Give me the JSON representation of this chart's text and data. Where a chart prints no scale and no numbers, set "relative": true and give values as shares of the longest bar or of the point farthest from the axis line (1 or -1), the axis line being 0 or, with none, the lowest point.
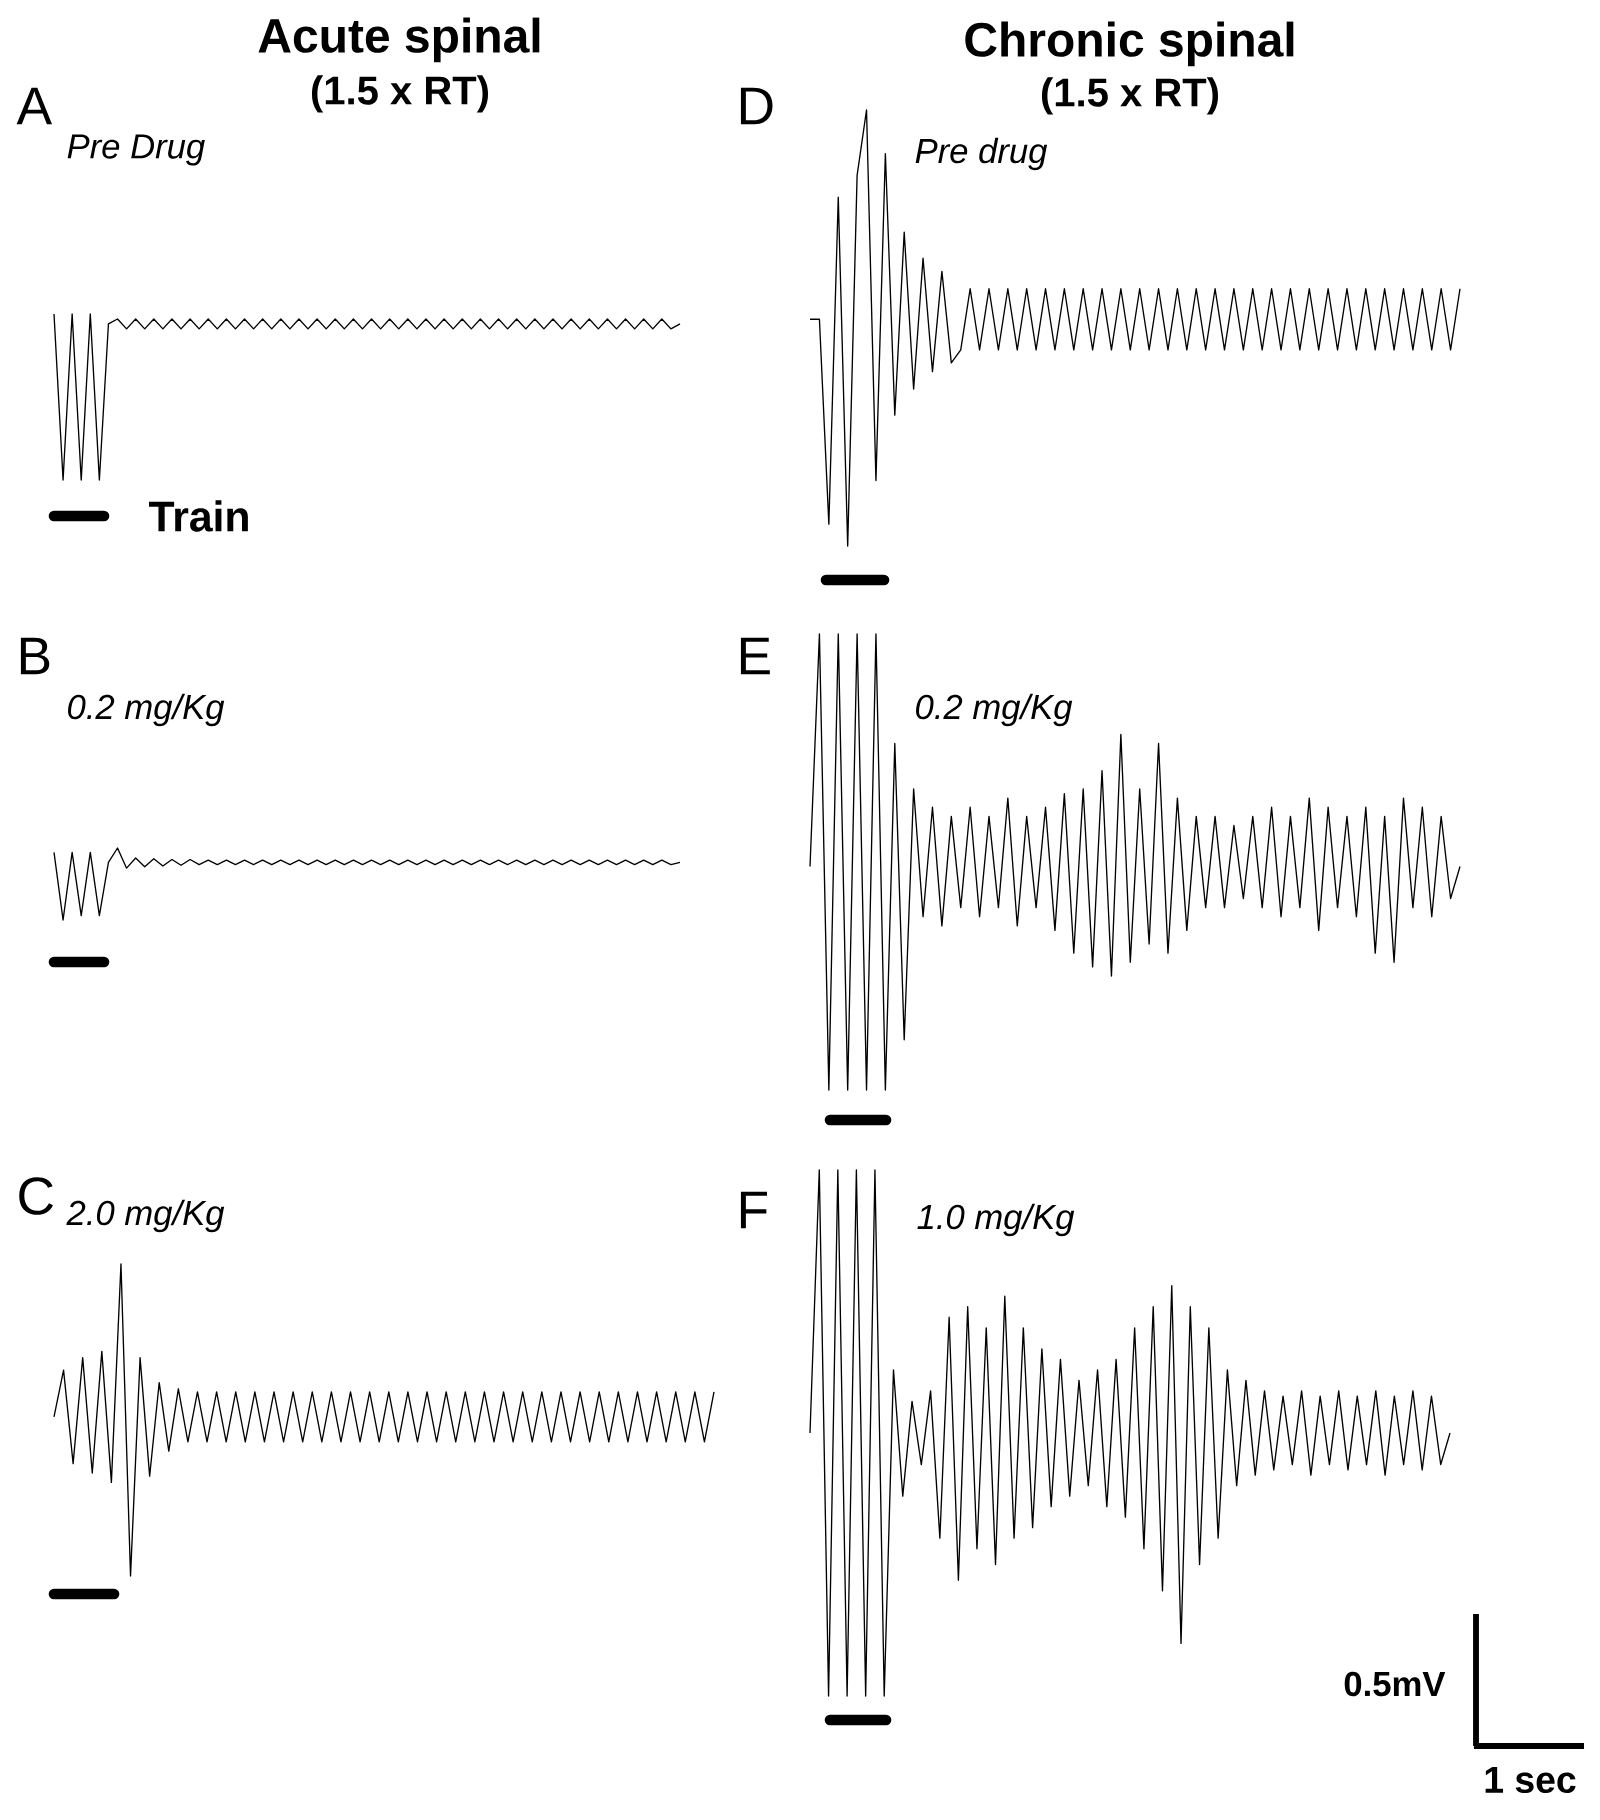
{
  "chart_data": [
    {
      "type": "line",
      "relative": true,
      "title": "A",
      "subtitle": "Pre Drug",
      "color": "#000000",
      "annotations": [
        "Acute spinal",
        "(1.5 x RT)",
        "Train"
      ],
      "categories": [
        null,
        null,
        null,
        null,
        null,
        null,
        null,
        null,
        null,
        null,
        null,
        null,
        null,
        null,
        null,
        null,
        null,
        null,
        null,
        null,
        null,
        null,
        null,
        null,
        null,
        null,
        null,
        null,
        null,
        null,
        null,
        null,
        null,
        null,
        null,
        null,
        null,
        null,
        null,
        null,
        null,
        null,
        null,
        null,
        null,
        null,
        null,
        null,
        null,
        null,
        null,
        null,
        null,
        null,
        null,
        null,
        null,
        null,
        null,
        null,
        null,
        null,
        null,
        null,
        null,
        null,
        null,
        null,
        null,
        null
      ],
      "values": [
        1,
        0,
        1,
        0,
        1,
        0,
        0.94,
        0.97,
        0.91,
        0.97,
        0.91,
        0.97,
        0.91,
        0.97,
        0.91,
        0.97,
        0.91,
        0.97,
        0.91,
        0.97,
        0.91,
        0.97,
        0.91,
        0.97,
        0.91,
        0.97,
        0.91,
        0.97,
        0.91,
        0.97,
        0.91,
        0.97,
        0.91,
        0.97,
        0.91,
        0.97,
        0.91,
        0.97,
        0.91,
        0.97,
        0.91,
        0.97,
        0.91,
        0.97,
        0.91,
        0.97,
        0.91,
        0.97,
        0.91,
        0.97,
        0.91,
        0.97,
        0.91,
        0.97,
        0.91,
        0.97,
        0.91,
        0.97,
        0.91,
        0.97,
        0.91,
        0.97,
        0.91,
        0.97,
        0.91,
        0.97,
        0.91,
        0.97,
        0.91,
        0.94
      ]
    },
    {
      "type": "line",
      "relative": true,
      "title": "B",
      "subtitle": "0.2 mg/Kg",
      "color": "#000000",
      "categories": [
        null,
        null,
        null,
        null,
        null,
        null,
        null,
        null,
        null,
        null,
        null,
        null,
        null,
        null,
        null,
        null,
        null,
        null,
        null,
        null,
        null,
        null,
        null,
        null,
        null,
        null,
        null,
        null,
        null,
        null,
        null,
        null,
        null,
        null,
        null,
        null,
        null,
        null,
        null,
        null,
        null,
        null,
        null,
        null,
        null,
        null,
        null,
        null,
        null,
        null,
        null,
        null,
        null,
        null,
        null,
        null,
        null,
        null,
        null,
        null,
        null,
        null,
        null,
        null,
        null,
        null,
        null,
        null,
        null,
        null
      ],
      "values": [
        0.94,
        0,
        0.94,
        0.06,
        0.94,
        0.06,
        0.8,
        1,
        0.72,
        0.86,
        0.74,
        0.85,
        0.75,
        0.84,
        0.76,
        0.84,
        0.77,
        0.83,
        0.77,
        0.83,
        0.77,
        0.83,
        0.77,
        0.83,
        0.77,
        0.83,
        0.77,
        0.83,
        0.77,
        0.83,
        0.77,
        0.83,
        0.77,
        0.83,
        0.77,
        0.83,
        0.77,
        0.83,
        0.77,
        0.83,
        0.77,
        0.83,
        0.77,
        0.83,
        0.77,
        0.83,
        0.77,
        0.83,
        0.77,
        0.83,
        0.77,
        0.83,
        0.77,
        0.83,
        0.77,
        0.83,
        0.77,
        0.83,
        0.77,
        0.83,
        0.77,
        0.83,
        0.77,
        0.83,
        0.77,
        0.83,
        0.77,
        0.83,
        0.77,
        0.8
      ]
    },
    {
      "type": "line",
      "relative": true,
      "title": "C",
      "subtitle": "2.0 mg/Kg",
      "color": "#000000",
      "categories": [
        null,
        null,
        null,
        null,
        null,
        null,
        null,
        null,
        null,
        null,
        null,
        null,
        null,
        null,
        null,
        null,
        null,
        null,
        null,
        null,
        null,
        null,
        null,
        null,
        null,
        null,
        null,
        null,
        null,
        null,
        null,
        null,
        null,
        null,
        null,
        null,
        null,
        null,
        null,
        null,
        null,
        null,
        null,
        null,
        null,
        null,
        null,
        null,
        null,
        null,
        null,
        null,
        null,
        null,
        null,
        null,
        null,
        null,
        null,
        null,
        null,
        null,
        null,
        null,
        null,
        null,
        null,
        null,
        null,
        null
      ],
      "values": [
        0.51,
        0.66,
        0.36,
        0.7,
        0.33,
        0.72,
        0.3,
        1,
        0,
        0.7,
        0.32,
        0.62,
        0.4,
        0.6,
        0.43,
        0.59,
        0.43,
        0.59,
        0.43,
        0.59,
        0.43,
        0.59,
        0.43,
        0.59,
        0.43,
        0.59,
        0.43,
        0.59,
        0.43,
        0.59,
        0.43,
        0.59,
        0.43,
        0.59,
        0.43,
        0.59,
        0.43,
        0.59,
        0.43,
        0.59,
        0.43,
        0.59,
        0.43,
        0.59,
        0.43,
        0.59,
        0.43,
        0.59,
        0.43,
        0.59,
        0.43,
        0.59,
        0.43,
        0.59,
        0.43,
        0.59,
        0.43,
        0.59,
        0.43,
        0.59,
        0.43,
        0.59,
        0.43,
        0.59,
        0.43,
        0.59,
        0.43,
        0.59,
        0.43,
        0.59
      ]
    },
    {
      "type": "line",
      "relative": true,
      "title": "D",
      "subtitle": "Pre drug",
      "color": "#000000",
      "annotations": [
        "Chronic spinal",
        "(1.5 x RT)"
      ],
      "categories": [
        null,
        null,
        null,
        null,
        null,
        null,
        null,
        null,
        null,
        null,
        null,
        null,
        null,
        null,
        null,
        null,
        null,
        null,
        null,
        null,
        null,
        null,
        null,
        null,
        null,
        null,
        null,
        null,
        null,
        null,
        null,
        null,
        null,
        null,
        null,
        null,
        null,
        null,
        null,
        null,
        null,
        null,
        null,
        null,
        null,
        null,
        null,
        null,
        null,
        null,
        null,
        null,
        null,
        null,
        null,
        null,
        null,
        null,
        null,
        null,
        null,
        null,
        null,
        null,
        null,
        null,
        null,
        null,
        null,
        null
      ],
      "values": [
        0.52,
        0.52,
        0.05,
        0.8,
        0,
        0.85,
        1,
        0.15,
        0.9,
        0.3,
        0.72,
        0.36,
        0.66,
        0.4,
        0.63,
        0.42,
        0.45,
        0.59,
        0.45,
        0.59,
        0.45,
        0.59,
        0.45,
        0.59,
        0.45,
        0.59,
        0.45,
        0.59,
        0.45,
        0.59,
        0.45,
        0.59,
        0.45,
        0.59,
        0.45,
        0.59,
        0.45,
        0.59,
        0.45,
        0.59,
        0.45,
        0.59,
        0.45,
        0.59,
        0.45,
        0.59,
        0.45,
        0.59,
        0.45,
        0.59,
        0.45,
        0.59,
        0.45,
        0.59,
        0.45,
        0.59,
        0.45,
        0.59,
        0.45,
        0.59,
        0.45,
        0.59,
        0.45,
        0.59,
        0.45,
        0.59,
        0.45,
        0.59,
        0.45,
        0.59
      ]
    },
    {
      "type": "line",
      "relative": true,
      "title": "E",
      "subtitle": "0.2 mg/Kg",
      "color": "#000000",
      "categories": [
        null,
        null,
        null,
        null,
        null,
        null,
        null,
        null,
        null,
        null,
        null,
        null,
        null,
        null,
        null,
        null,
        null,
        null,
        null,
        null,
        null,
        null,
        null,
        null,
        null,
        null,
        null,
        null,
        null,
        null,
        null,
        null,
        null,
        null,
        null,
        null,
        null,
        null,
        null,
        null,
        null,
        null,
        null,
        null,
        null,
        null,
        null,
        null,
        null,
        null,
        null,
        null,
        null,
        null,
        null,
        null,
        null,
        null,
        null,
        null,
        null,
        null,
        null,
        null,
        null,
        null,
        null,
        null,
        null,
        null
      ],
      "values": [
        0.49,
        1,
        0,
        1,
        0,
        1,
        0,
        1,
        0,
        0.76,
        0.11,
        0.66,
        0.38,
        0.62,
        0.36,
        0.6,
        0.4,
        0.62,
        0.38,
        0.6,
        0.4,
        0.64,
        0.36,
        0.6,
        0.4,
        0.62,
        0.35,
        0.65,
        0.3,
        0.66,
        0.27,
        0.7,
        0.25,
        0.78,
        0.28,
        0.66,
        0.32,
        0.76,
        0.3,
        0.64,
        0.35,
        0.6,
        0.4,
        0.6,
        0.4,
        0.58,
        0.42,
        0.6,
        0.4,
        0.62,
        0.38,
        0.6,
        0.4,
        0.64,
        0.35,
        0.62,
        0.4,
        0.6,
        0.38,
        0.62,
        0.3,
        0.6,
        0.28,
        0.64,
        0.4,
        0.62,
        0.38,
        0.6,
        0.42,
        0.49
      ]
    },
    {
      "type": "line",
      "relative": true,
      "title": "F",
      "subtitle": "1.0 mg/Kg",
      "color": "#000000",
      "annotations": [
        "0.5mV",
        "1 sec"
      ],
      "categories": [
        null,
        null,
        null,
        null,
        null,
        null,
        null,
        null,
        null,
        null,
        null,
        null,
        null,
        null,
        null,
        null,
        null,
        null,
        null,
        null,
        null,
        null,
        null,
        null,
        null,
        null,
        null,
        null,
        null,
        null,
        null,
        null,
        null,
        null,
        null,
        null,
        null,
        null,
        null,
        null,
        null,
        null,
        null,
        null,
        null,
        null,
        null,
        null,
        null,
        null,
        null,
        null,
        null,
        null,
        null,
        null,
        null,
        null,
        null,
        null,
        null,
        null,
        null,
        null,
        null,
        null,
        null,
        null,
        null,
        null
      ],
      "values": [
        0.5,
        1,
        0,
        1,
        0,
        1,
        0,
        1,
        0,
        0.62,
        0.38,
        0.56,
        0.44,
        0.58,
        0.3,
        0.72,
        0.22,
        0.74,
        0.28,
        0.7,
        0.25,
        0.76,
        0.3,
        0.7,
        0.32,
        0.66,
        0.36,
        0.64,
        0.38,
        0.6,
        0.4,
        0.62,
        0.36,
        0.64,
        0.34,
        0.7,
        0.28,
        0.74,
        0.2,
        0.78,
        0.1,
        0.74,
        0.25,
        0.7,
        0.3,
        0.62,
        0.4,
        0.6,
        0.42,
        0.58,
        0.43,
        0.57,
        0.44,
        0.58,
        0.42,
        0.57,
        0.44,
        0.58,
        0.43,
        0.57,
        0.44,
        0.58,
        0.42,
        0.57,
        0.44,
        0.58,
        0.43,
        0.57,
        0.44,
        0.5
      ]
    }
  ]
}
